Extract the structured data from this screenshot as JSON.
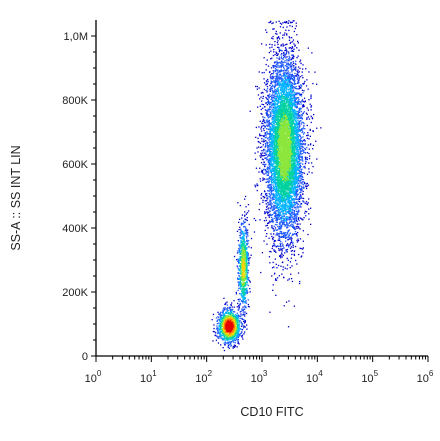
{
  "chart_data": {
    "type": "scatter",
    "style": "density dot plot (flow cytometry), rainbow colour by density",
    "xlabel": "CD10 FITC",
    "ylabel": "SS-A :: SS INT LIN",
    "x_scale": "log",
    "x_range": [
      1,
      1000000
    ],
    "x_tick_labels": [
      "10",
      "10",
      "10",
      "10",
      "10",
      "10",
      "10"
    ],
    "x_tick_exponents": [
      "0",
      "1",
      "2",
      "3",
      "4",
      "5",
      "6"
    ],
    "y_scale": "linear",
    "y_range": [
      0,
      1050000
    ],
    "y_ticks": [
      0,
      200000,
      400000,
      600000,
      800000,
      1000000
    ],
    "y_tick_labels": [
      "0",
      "200K",
      "400K",
      "600K",
      "800K",
      "1,0M"
    ],
    "grid": false,
    "legend": "none",
    "density_colors": [
      "#0000c8",
      "#1e5aff",
      "#00b4ff",
      "#00d2a0",
      "#8ce63c",
      "#ffd200",
      "#ff7800",
      "#e60000"
    ],
    "populations": [
      {
        "center_x": 250,
        "center_y": 95000,
        "spread_log10_x": 0.1,
        "spread_y": 25000,
        "weight": 0.14
      },
      {
        "center_x": 450,
        "center_y": 280000,
        "spread_log10_x": 0.05,
        "spread_y": 70000,
        "weight": 0.09
      },
      {
        "center_x": 2500,
        "center_y": 650000,
        "spread_log10_x": 0.17,
        "spread_y": 140000,
        "weight": 0.77
      }
    ]
  }
}
